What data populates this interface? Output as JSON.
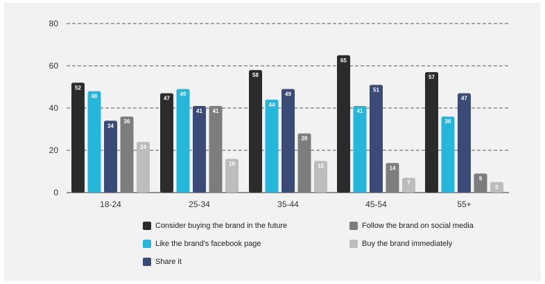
{
  "chart_data": {
    "type": "bar",
    "title": "",
    "xlabel": "",
    "ylabel": "",
    "ylim": [
      0,
      80
    ],
    "yticks": [
      0,
      20,
      40,
      60,
      80
    ],
    "grid": true,
    "legend_position": "bottom-right",
    "categories": [
      "18-24",
      "25-34",
      "35-44",
      "45-54",
      "55+"
    ],
    "series": [
      {
        "name": "Consider buying the brand in the future",
        "color": "#2b2b2b",
        "values": [
          52,
          47,
          58,
          65,
          57
        ]
      },
      {
        "name": "Like the brand's facebook page",
        "color": "#25b6dc",
        "values": [
          48,
          49,
          44,
          41,
          36
        ]
      },
      {
        "name": "Share it",
        "color": "#3b4b78",
        "values": [
          34,
          41,
          49,
          51,
          47
        ]
      },
      {
        "name": "Follow the brand on social media",
        "color": "#7d7d7d",
        "values": [
          36,
          41,
          28,
          14,
          9
        ]
      },
      {
        "name": "Buy the brand immediately",
        "color": "#bdbdbd",
        "values": [
          24,
          16,
          15,
          7,
          5
        ]
      }
    ],
    "data_labels": [
      [
        "52",
        "48",
        "34",
        "36",
        "24"
      ],
      [
        "47",
        "49",
        "41",
        "41",
        "16"
      ],
      [
        "58",
        "44",
        "49",
        "28",
        "15"
      ],
      [
        "65",
        "41",
        "51",
        "14",
        "7"
      ],
      [
        "57",
        "36",
        "47",
        "9",
        "5"
      ]
    ]
  }
}
